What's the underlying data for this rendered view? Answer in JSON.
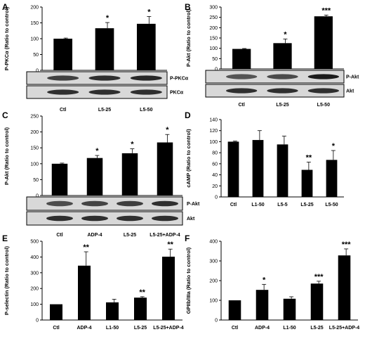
{
  "chart_data": [
    {
      "panel": "A",
      "type": "bar",
      "ylabel": "P-PKCα (Ratio to control)",
      "ylim": [
        0,
        200
      ],
      "yticks": [
        0,
        50,
        100,
        150,
        200
      ],
      "categories": [
        "Ctl",
        "L5-25",
        "L5-50"
      ],
      "values": [
        100,
        133,
        147
      ],
      "errors": [
        2,
        18,
        23
      ],
      "significance": [
        "",
        "*",
        "*"
      ],
      "blot_labels": [
        "P-PKCα",
        "PKCα"
      ]
    },
    {
      "panel": "B",
      "type": "bar",
      "ylabel": "P-Akt (Ratio to control)",
      "ylim": [
        0,
        300
      ],
      "yticks": [
        0,
        50,
        100,
        150,
        200,
        250,
        300
      ],
      "categories": [
        "Ctl",
        "L5-25",
        "L5-50"
      ],
      "values": [
        97,
        125,
        255
      ],
      "errors": [
        2,
        20,
        6
      ],
      "significance": [
        "",
        "*",
        "***"
      ],
      "blot_labels": [
        "P-Akt",
        "Akt"
      ]
    },
    {
      "panel": "C",
      "type": "bar",
      "ylabel": "P-Akt (Ratio to control)",
      "ylim": [
        0,
        250
      ],
      "yticks": [
        0,
        50,
        100,
        150,
        200,
        250
      ],
      "categories": [
        "Ctl",
        "ADP-4",
        "L5-25",
        "L5-25+ADP-4"
      ],
      "values": [
        100,
        118,
        133,
        167
      ],
      "errors": [
        2,
        8,
        14,
        25
      ],
      "significance": [
        "",
        "*",
        "*",
        "*"
      ],
      "blot_labels": [
        "P-Akt",
        "Akt"
      ]
    },
    {
      "panel": "D",
      "type": "bar",
      "ylabel": "cAMP (Ratio to control)",
      "ylim": [
        0,
        140
      ],
      "yticks": [
        0,
        20,
        40,
        60,
        80,
        100,
        120,
        140
      ],
      "categories": [
        "Ctl",
        "L1-50",
        "L5-5",
        "L5-25",
        "L5-50"
      ],
      "values": [
        100,
        103,
        95,
        49,
        67
      ],
      "errors": [
        1,
        17,
        15,
        14,
        17
      ],
      "significance": [
        "",
        "",
        "",
        "**",
        "*"
      ]
    },
    {
      "panel": "E",
      "type": "bar",
      "ylabel": "P-selectin (Ratio to control)",
      "ylim": [
        0,
        500
      ],
      "yticks": [
        0,
        100,
        200,
        300,
        400,
        500
      ],
      "categories": [
        "Ctl",
        "ADP-4",
        "L1-50",
        "L5-25",
        "L5-25+ADP-4"
      ],
      "values": [
        100,
        345,
        112,
        142,
        402
      ],
      "errors": [
        0,
        88,
        20,
        6,
        48
      ],
      "significance": [
        "",
        "**",
        "",
        "**",
        "**"
      ]
    },
    {
      "panel": "F",
      "type": "bar",
      "ylabel": "GPIIb/IIIa (Ratio to control)",
      "ylim": [
        0,
        400
      ],
      "yticks": [
        0,
        100,
        200,
        300,
        400
      ],
      "categories": [
        "Ctl",
        "ADP-4",
        "L1-50",
        "L5-25",
        "L5-25+ADP-4"
      ],
      "values": [
        100,
        153,
        108,
        185,
        328
      ],
      "errors": [
        0,
        28,
        10,
        12,
        33
      ],
      "significance": [
        "",
        "*",
        "",
        "***",
        "***"
      ]
    }
  ]
}
